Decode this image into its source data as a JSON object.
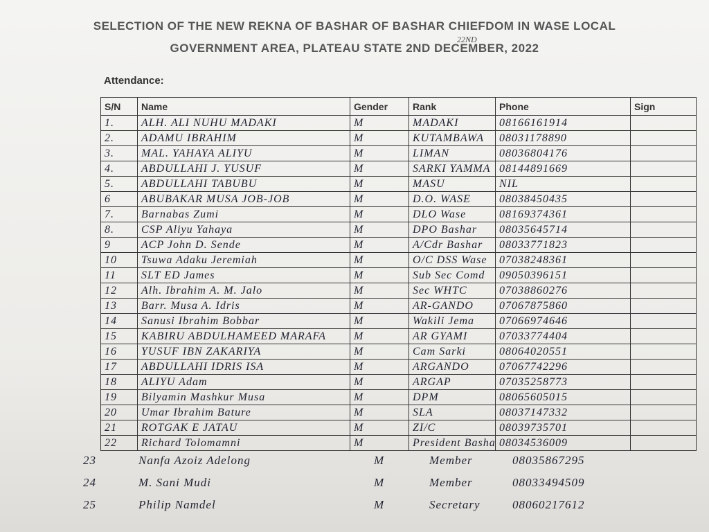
{
  "header": {
    "title_line1": "SELECTION OF THE NEW REKNA OF BASHAR OF BASHAR CHIEFDOM IN WASE LOCAL",
    "title_line2": "GOVERNMENT AREA, PLATEAU STATE 2ND DECEMBER, 2022",
    "correction": "22ND"
  },
  "attendance_label": "Attendance:",
  "table": {
    "columns": [
      "S/N",
      "Name",
      "Gender",
      "Rank",
      "Phone",
      "Sign"
    ],
    "rows": [
      [
        "1.",
        "ALH. ALI NUHU MADAKI",
        "M",
        "MADAKI",
        "08166161914"
      ],
      [
        "2.",
        "ADAMU IBRAHIM",
        "M",
        "KUTAMBAWA",
        "08031178890"
      ],
      [
        "3.",
        "MAL. YAHAYA ALIYU",
        "M",
        "LIMAN",
        "08036804176"
      ],
      [
        "4.",
        "ABDULLAHI J. YUSUF",
        "M",
        "SARKI YAMMA",
        "08144891669"
      ],
      [
        "5.",
        "ABDULLAHI TABUBU",
        "M",
        "MASU",
        "NIL"
      ],
      [
        "6",
        "ABUBAKAR MUSA JOB-JOB",
        "M",
        "D.O. WASE",
        "08038450435"
      ],
      [
        "7.",
        "Barnabas Zumi",
        "M",
        "DLO Wase",
        "08169374361"
      ],
      [
        "8.",
        "CSP Aliyu Yahaya",
        "M",
        "DPO Bashar",
        "08035645714"
      ],
      [
        "9",
        "ACP John D. Sende",
        "M",
        "A/Cdr Bashar",
        "08033771823"
      ],
      [
        "10",
        "Tsuwa Adaku Jeremiah",
        "M",
        "O/C DSS Wase",
        "07038248361"
      ],
      [
        "11",
        "SLT ED James",
        "M",
        "Sub Sec Comd",
        "09050396151"
      ],
      [
        "12",
        "Alh. Ibrahim A. M. Jalo",
        "M",
        "Sec WHTC",
        "07038860276"
      ],
      [
        "13",
        "Barr. Musa A. Idris",
        "M",
        "AR-GANDO",
        "07067875860"
      ],
      [
        "14",
        "Sanusi Ibrahim Bobbar",
        "M",
        "Wakili Jema",
        "07066974646"
      ],
      [
        "15",
        "KABIRU ABDULHAMEED MARAFA",
        "M",
        "AR GYAMI",
        "07033774404"
      ],
      [
        "16",
        "YUSUF IBN ZAKARIYA",
        "M",
        "Cam Sarki",
        "08064020551"
      ],
      [
        "17",
        "ABDULLAHI IDRIS ISA",
        "M",
        "ARGANDO",
        "07067742296"
      ],
      [
        "18",
        "ALIYU Adam",
        "M",
        "ARGAP",
        "07035258773"
      ],
      [
        "19",
        "Bilyamin Mashkur Musa",
        "M",
        "DPM",
        "08065605015"
      ],
      [
        "20",
        "Umar Ibrahim Bature",
        "M",
        "SLA",
        "08037147332"
      ],
      [
        "21",
        "ROTGAK E JATAU",
        "M",
        "ZI/C",
        "08039735701"
      ],
      [
        "22",
        "Richard Tolomamni",
        "M",
        "President Bashar",
        "08034536009"
      ],
      [
        "23",
        "Nanfa Azoiz Adelong",
        "M",
        "Member",
        "08035867295"
      ],
      [
        "24",
        "M. Sani Mudi",
        "M",
        "Member",
        "08033494509"
      ],
      [
        "25",
        "Philip Namdel",
        "M",
        "Secretary",
        "08060217612"
      ]
    ]
  }
}
